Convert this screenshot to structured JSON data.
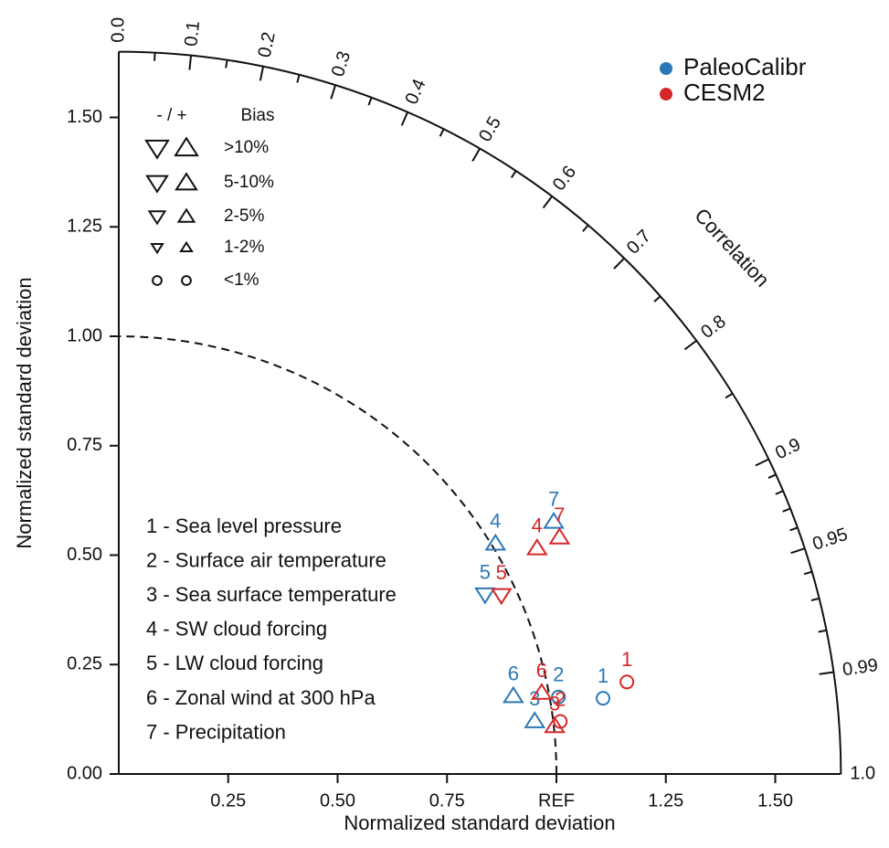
{
  "chart_data": {
    "type": "taylor",
    "xlabel": "Normalized standard deviation",
    "ylabel": "Normalized standard deviation",
    "correlation_label": "Correlation",
    "xlim": [
      0,
      1.65
    ],
    "ylim": [
      0,
      1.65
    ],
    "reference": 1,
    "xticks": [
      0.25,
      {
        "value": 0.5,
        "label": "0.50"
      },
      0.75,
      {
        "value": 1,
        "label": "REF"
      },
      1.25,
      {
        "value": 1.5,
        "label": "1.50"
      }
    ],
    "yticks": [
      {
        "value": 0,
        "label": "0.00"
      },
      0.25,
      {
        "value": 0.5,
        "label": "0.50"
      },
      0.75,
      {
        "value": 1,
        "label": "1.00"
      },
      1.25,
      {
        "value": 1.5,
        "label": "1.50"
      }
    ],
    "corr_ticks": [
      {
        "value": 0,
        "label": "0.0"
      },
      0.1,
      0.2,
      0.3,
      0.4,
      0.5,
      0.6,
      0.7,
      0.8,
      0.9,
      0.95,
      0.99,
      {
        "value": 1,
        "label": "1.0"
      }
    ],
    "corr_minor_ticks": [
      0.05,
      0.15,
      0.25,
      0.35,
      0.45,
      0.55,
      0.65,
      0.75,
      0.85,
      0.91,
      0.92,
      0.93,
      0.94,
      0.96,
      0.97,
      0.98
    ],
    "point_labels": [
      "1",
      "2",
      "3",
      "4",
      "5",
      "6",
      "7"
    ],
    "variables": [
      "1 - Sea level pressure",
      "2 - Surface air temperature",
      "3 - Sea surface temperature",
      "4 - SW cloud forcing",
      "5 - LW cloud forcing",
      "6 - Zonal wind at 300 hPa",
      "7 - Precipitation"
    ],
    "series": [
      {
        "name": "PaleoCalibr",
        "color": "#2a78b8",
        "std": [
          1.12,
          1.02,
          0.958,
          1.009,
          0.932,
          0.919,
          1.149
        ],
        "correlation": [
          0.988,
          0.985,
          0.992,
          0.853,
          0.898,
          0.981,
          0.865
        ],
        "markers": [
          "circle",
          "circle",
          "up",
          "up",
          "down",
          "up",
          "up"
        ]
      },
      {
        "name": "CESM2",
        "color": "#d62728",
        "std": [
          1.18,
          1.016,
          1.002,
          1.086,
          0.965,
          0.984,
          1.143
        ],
        "correlation": [
          0.984,
          0.993,
          0.994,
          0.88,
          0.906,
          0.982,
          0.881
        ],
        "markers": [
          "circle",
          "circle",
          "up",
          "up",
          "down",
          "up",
          "up"
        ]
      }
    ],
    "bias_legend": {
      "header": "- / +",
      "title": "Bias",
      "rows": [
        ">10%",
        "5-10%",
        "2-5%",
        "1-2%",
        "<1%"
      ]
    }
  }
}
